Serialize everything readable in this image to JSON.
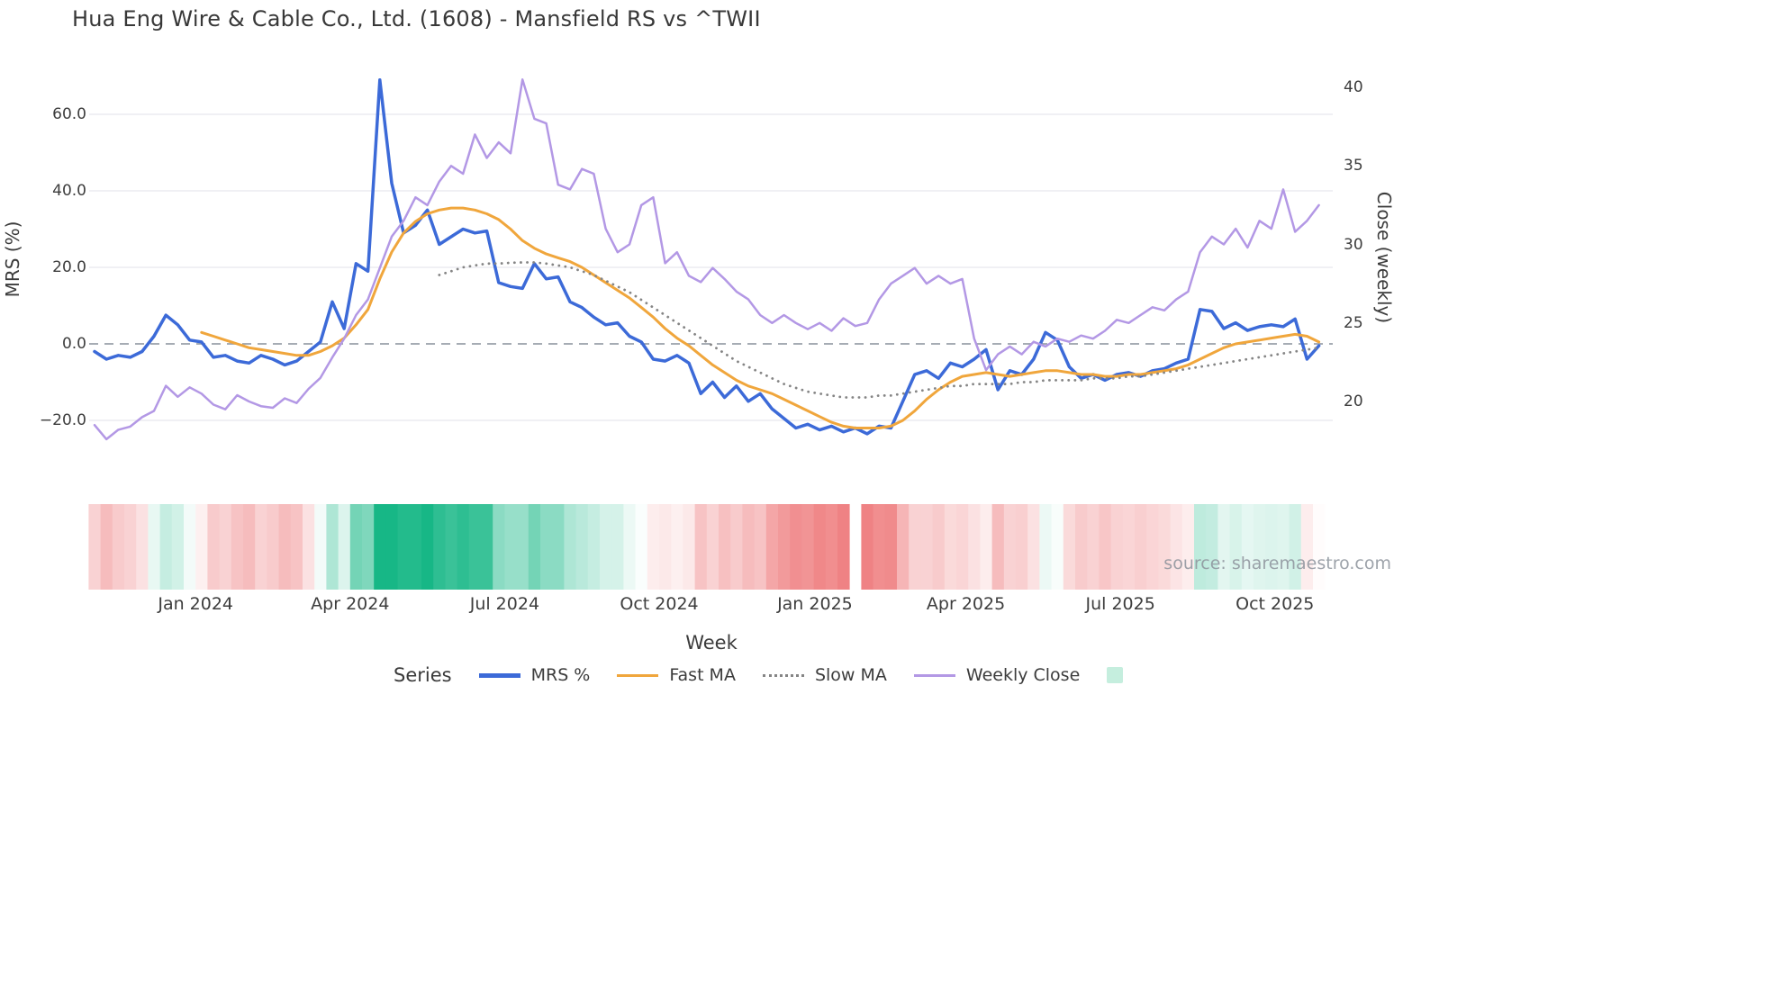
{
  "title": "Hua Eng Wire & Cable Co., Ltd. (1608) - Mansfield RS vs ^TWII",
  "watermark": "source: sharemaestro.com",
  "axes": {
    "left_label": "MRS (%)",
    "right_label": "Close (weekly)",
    "x_label": "Week",
    "left_ticks": [
      {
        "label": "60.0",
        "value": 60
      },
      {
        "label": "40.0",
        "value": 40
      },
      {
        "label": "20.0",
        "value": 20
      },
      {
        "label": "0.0",
        "value": 0
      },
      {
        "label": "−20.0",
        "value": -20
      }
    ],
    "right_ticks": [
      {
        "label": "40",
        "value": 40
      },
      {
        "label": "35",
        "value": 35
      },
      {
        "label": "30",
        "value": 30
      },
      {
        "label": "25",
        "value": 25
      },
      {
        "label": "20",
        "value": 20
      }
    ],
    "x_ticks": [
      {
        "label": "Jan 2024",
        "week": 8.5
      },
      {
        "label": "Apr 2024",
        "week": 21.5
      },
      {
        "label": "Jul 2024",
        "week": 34.5
      },
      {
        "label": "Oct 2024",
        "week": 47.5
      },
      {
        "label": "Jan 2025",
        "week": 60.6
      },
      {
        "label": "Apr 2025",
        "week": 73.3
      },
      {
        "label": "Jul 2025",
        "week": 86.3
      },
      {
        "label": "Oct 2025",
        "week": 99.3
      }
    ]
  },
  "legend": {
    "title": "Series",
    "heatmap_swatch_color": "#c5eede"
  },
  "colors": {
    "grid": "#ececf1",
    "zero_line": "#99a1aa",
    "text": "#3c3c3c"
  },
  "chart_data": {
    "type": "line",
    "x_unit": "week",
    "n_weeks": 104,
    "x_range": [
      "Nov 2023",
      "Nov 2025"
    ],
    "ylim_left": [
      -26,
      70
    ],
    "ylim_right": [
      17.4,
      40.7
    ],
    "grid": true,
    "zero_reference_line": true,
    "legend_position": "bottom",
    "series": [
      {
        "name": "MRS %",
        "axis": "left",
        "color": "#3c6ad8",
        "width": 3.5,
        "dash": null,
        "values": [
          -2,
          -4,
          -3,
          -3.5,
          -2,
          2,
          7.5,
          5,
          1,
          0.5,
          -3.5,
          -3,
          -4.5,
          -5,
          -3,
          -4,
          -5.5,
          -4.5,
          -2,
          0.5,
          11,
          4,
          21,
          19,
          69,
          42,
          29,
          31,
          35,
          26,
          28,
          30,
          29,
          29.5,
          16,
          15,
          14.5,
          21,
          17,
          17.5,
          11,
          9.5,
          7,
          5,
          5.5,
          2,
          0.5,
          -4,
          -4.5,
          -3,
          -5,
          -13,
          -10,
          -14,
          -11,
          -15,
          -13,
          -17,
          -19.5,
          -22,
          -21,
          -22.5,
          -21.5,
          -23,
          -22,
          -23.5,
          -21.5,
          -22,
          -15,
          -8,
          -7,
          -9,
          -5,
          -6,
          -4,
          -1.5,
          -12,
          -7,
          -8,
          -4,
          3,
          1,
          -6,
          -9,
          -8,
          -9.5,
          -8,
          -7.5,
          -8.5,
          -7,
          -6.5,
          -5,
          -4,
          9,
          8.5,
          4,
          5.5,
          3.5,
          4.5,
          5,
          4.5,
          6.5,
          -4,
          -0.5
        ]
      },
      {
        "name": "Fast MA",
        "axis": "left",
        "color": "#f0a63c",
        "width": 3,
        "dash": null,
        "values": [
          null,
          null,
          null,
          null,
          null,
          null,
          null,
          null,
          null,
          3,
          2,
          1,
          0,
          -1,
          -1.5,
          -2,
          -2.5,
          -3,
          -3,
          -2,
          -0.5,
          1.5,
          5,
          9,
          17,
          24,
          29,
          32,
          34,
          35,
          35.5,
          35.5,
          35,
          34,
          32.5,
          30,
          27,
          25,
          23.5,
          22.5,
          21.5,
          20,
          18,
          16,
          14,
          12,
          9.5,
          7,
          4,
          1.5,
          -0.5,
          -3,
          -5.5,
          -7.5,
          -9.5,
          -11,
          -12,
          -13,
          -14.5,
          -16,
          -17.5,
          -19,
          -20.5,
          -21.5,
          -22,
          -22,
          -22,
          -21.5,
          -20,
          -17.5,
          -14.5,
          -12,
          -10,
          -8.5,
          -8,
          -7.5,
          -8,
          -8.5,
          -8,
          -7.5,
          -7,
          -7,
          -7.5,
          -8,
          -8,
          -8.5,
          -8.5,
          -8,
          -8,
          -7.5,
          -7,
          -6.5,
          -5.5,
          -4,
          -2.5,
          -1,
          0,
          0.5,
          1,
          1.5,
          2,
          2.5,
          2,
          0.5
        ]
      },
      {
        "name": "Slow MA",
        "axis": "left",
        "color": "#858585",
        "width": 2.8,
        "dash": "0.1 7",
        "values": [
          null,
          null,
          null,
          null,
          null,
          null,
          null,
          null,
          null,
          null,
          null,
          null,
          null,
          null,
          null,
          null,
          null,
          null,
          null,
          null,
          null,
          null,
          null,
          null,
          null,
          null,
          null,
          null,
          null,
          18,
          19,
          20,
          20.5,
          21,
          21,
          21.2,
          21.3,
          21.3,
          21,
          20.5,
          20,
          19,
          18,
          16.5,
          15,
          13.5,
          11.5,
          9.5,
          7.5,
          5.5,
          3.5,
          1.5,
          -0.5,
          -2.5,
          -4.5,
          -6,
          -7.5,
          -9,
          -10.5,
          -11.5,
          -12.5,
          -13,
          -13.5,
          -14,
          -14,
          -14,
          -13.5,
          -13.5,
          -13,
          -12.5,
          -12,
          -11.5,
          -11,
          -11,
          -10.5,
          -10.5,
          -10.5,
          -10.5,
          -10,
          -10,
          -9.5,
          -9.5,
          -9.5,
          -9.5,
          -9,
          -9,
          -9,
          -8.5,
          -8.5,
          -8,
          -7.5,
          -7,
          -6.5,
          -6,
          -5.5,
          -5,
          -4.5,
          -4,
          -3.5,
          -3,
          -2.5,
          -2,
          -1.5,
          -1
        ]
      },
      {
        "name": "Weekly Close",
        "axis": "right",
        "color": "#b398e5",
        "width": 2.5,
        "dash": null,
        "values": [
          18.5,
          17.6,
          18.2,
          18.4,
          19.0,
          19.4,
          21.0,
          20.3,
          20.9,
          20.5,
          19.8,
          19.5,
          20.4,
          20.0,
          19.7,
          19.6,
          20.2,
          19.9,
          20.8,
          21.5,
          22.8,
          24.0,
          25.5,
          26.5,
          28.5,
          30.5,
          31.5,
          33.0,
          32.5,
          34.0,
          35.0,
          34.5,
          37.0,
          35.5,
          36.5,
          35.8,
          40.5,
          38.0,
          37.7,
          33.8,
          33.5,
          34.8,
          34.5,
          31.0,
          29.5,
          30.0,
          32.5,
          33.0,
          28.8,
          29.5,
          28.0,
          27.6,
          28.5,
          27.8,
          27.0,
          26.5,
          25.5,
          25.0,
          25.5,
          25.0,
          24.6,
          25.0,
          24.5,
          25.3,
          24.8,
          25.0,
          26.5,
          27.5,
          28.0,
          28.5,
          27.5,
          28.0,
          27.5,
          27.8,
          24.0,
          22.0,
          23.0,
          23.5,
          23.0,
          23.8,
          23.5,
          24.0,
          23.8,
          24.2,
          24.0,
          24.5,
          25.2,
          25.0,
          25.5,
          26.0,
          25.8,
          26.5,
          27.0,
          29.5,
          30.5,
          30.0,
          31.0,
          29.8,
          31.5,
          31.0,
          33.5,
          30.8,
          31.5,
          32.5
        ]
      }
    ],
    "heatmap": {
      "type": "heatmap-strip",
      "description": "relative-strength heat strip, green = positive, red = negative",
      "positive_color": "#17b786",
      "negative_color": "#ec6a6c",
      "gap_index": 64,
      "values": [
        -0.3,
        -0.45,
        -0.35,
        -0.3,
        -0.2,
        0.1,
        0.25,
        0.2,
        0.05,
        -0.1,
        -0.35,
        -0.3,
        -0.4,
        -0.45,
        -0.3,
        -0.35,
        -0.45,
        -0.4,
        -0.2,
        0.05,
        0.35,
        0.15,
        0.6,
        0.55,
        1.0,
        1.0,
        0.95,
        0.95,
        1.0,
        0.9,
        0.85,
        0.9,
        0.85,
        0.85,
        0.5,
        0.45,
        0.45,
        0.6,
        0.5,
        0.5,
        0.35,
        0.3,
        0.25,
        0.18,
        0.18,
        0.08,
        0.02,
        -0.12,
        -0.15,
        -0.1,
        -0.15,
        -0.4,
        -0.3,
        -0.42,
        -0.35,
        -0.45,
        -0.4,
        -0.6,
        -0.68,
        -0.75,
        -0.72,
        -0.8,
        -0.76,
        -0.84,
        null,
        -0.84,
        -0.76,
        -0.78,
        -0.5,
        -0.3,
        -0.3,
        -0.35,
        -0.25,
        -0.28,
        -0.2,
        -0.12,
        -0.45,
        -0.3,
        -0.32,
        -0.2,
        0.08,
        0.03,
        -0.25,
        -0.35,
        -0.3,
        -0.38,
        -0.3,
        -0.28,
        -0.32,
        -0.28,
        -0.25,
        -0.18,
        -0.12,
        0.28,
        0.26,
        0.12,
        0.17,
        0.11,
        0.14,
        0.15,
        0.14,
        0.2,
        -0.12,
        -0.02
      ]
    }
  }
}
